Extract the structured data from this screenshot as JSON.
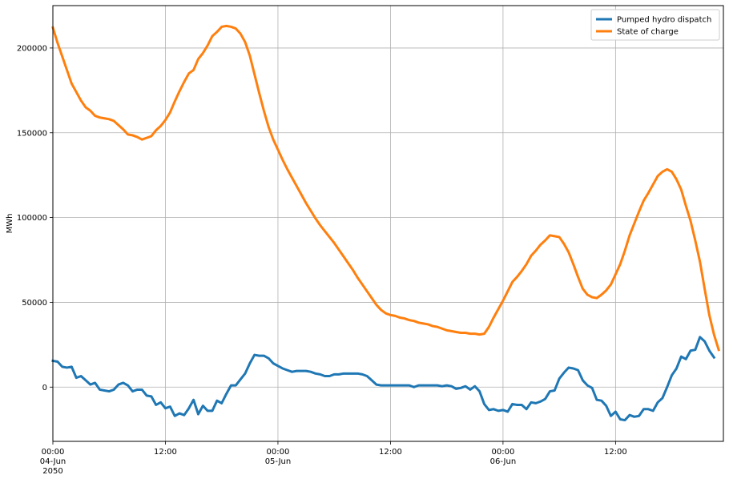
{
  "chart_data": {
    "type": "line",
    "title": "",
    "xlabel": "",
    "ylabel": "MWh",
    "ylim": [
      -32000,
      225000
    ],
    "xlim_hours": [
      0,
      71.5
    ],
    "x_ticks": [
      {
        "hour": 0,
        "lines": [
          "00:00",
          "04-Jun",
          "2050"
        ]
      },
      {
        "hour": 12,
        "lines": [
          "12:00"
        ]
      },
      {
        "hour": 24,
        "lines": [
          "00:00",
          "05-Jun"
        ]
      },
      {
        "hour": 36,
        "lines": [
          "12:00"
        ]
      },
      {
        "hour": 48,
        "lines": [
          "00:00",
          "06-Jun"
        ]
      },
      {
        "hour": 60,
        "lines": [
          "12:00"
        ]
      }
    ],
    "y_ticks": [
      0,
      50000,
      100000,
      150000,
      200000
    ],
    "y_tick_labels": [
      "0",
      "50000",
      "100000",
      "150000",
      "200000"
    ],
    "grid": true,
    "legend_position": "top-right",
    "series": [
      {
        "name": "Pumped hydro dispatch",
        "color": "#1f77b4",
        "points": [
          [
            0,
            15500
          ],
          [
            0.5,
            15000
          ],
          [
            1,
            12000
          ],
          [
            1.5,
            11500
          ],
          [
            2,
            12000
          ],
          [
            2.5,
            5500
          ],
          [
            3,
            6500
          ],
          [
            3.5,
            4000
          ],
          [
            4,
            1500
          ],
          [
            4.5,
            2500
          ],
          [
            5,
            -1500
          ],
          [
            5.5,
            -2000
          ],
          [
            6,
            -2500
          ],
          [
            6.5,
            -1500
          ],
          [
            7,
            1500
          ],
          [
            7.5,
            2500
          ],
          [
            8,
            1000
          ],
          [
            8.5,
            -2500
          ],
          [
            9,
            -1500
          ],
          [
            9.5,
            -1500
          ],
          [
            10,
            -5000
          ],
          [
            10.5,
            -5500
          ],
          [
            11,
            -10500
          ],
          [
            11.5,
            -9000
          ],
          [
            12,
            -12500
          ],
          [
            12.5,
            -11500
          ],
          [
            13,
            -17000
          ],
          [
            13.5,
            -15500
          ],
          [
            14,
            -16500
          ],
          [
            14.5,
            -12500
          ],
          [
            15,
            -7500
          ],
          [
            15.5,
            -16000
          ],
          [
            16,
            -11000
          ],
          [
            16.5,
            -14000
          ],
          [
            17,
            -14000
          ],
          [
            17.5,
            -8000
          ],
          [
            18,
            -9500
          ],
          [
            18.5,
            -4000
          ],
          [
            19,
            1000
          ],
          [
            19.5,
            1000
          ],
          [
            20,
            4500
          ],
          [
            20.5,
            8000
          ],
          [
            21,
            14000
          ],
          [
            21.5,
            19000
          ],
          [
            22,
            18500
          ],
          [
            22.5,
            18500
          ],
          [
            23,
            17000
          ],
          [
            23.5,
            14000
          ],
          [
            24,
            12500
          ],
          [
            24.5,
            11000
          ],
          [
            25,
            10000
          ],
          [
            25.5,
            9000
          ],
          [
            26,
            9500
          ],
          [
            26.5,
            9500
          ],
          [
            27,
            9500
          ],
          [
            27.5,
            9000
          ],
          [
            28,
            8000
          ],
          [
            28.5,
            7500
          ],
          [
            29,
            6500
          ],
          [
            29.5,
            6500
          ],
          [
            30,
            7500
          ],
          [
            30.5,
            7500
          ],
          [
            31,
            8000
          ],
          [
            31.5,
            8000
          ],
          [
            32,
            8000
          ],
          [
            32.5,
            8000
          ],
          [
            33,
            7500
          ],
          [
            33.5,
            6500
          ],
          [
            34,
            4000
          ],
          [
            34.5,
            1500
          ],
          [
            35,
            1000
          ],
          [
            35.5,
            1000
          ],
          [
            36,
            1000
          ],
          [
            36.5,
            1000
          ],
          [
            37,
            1000
          ],
          [
            37.5,
            1000
          ],
          [
            38,
            1000
          ],
          [
            38.5,
            0
          ],
          [
            39,
            1000
          ],
          [
            39.5,
            1000
          ],
          [
            40,
            1000
          ],
          [
            40.5,
            1000
          ],
          [
            41,
            1000
          ],
          [
            41.5,
            500
          ],
          [
            42,
            1000
          ],
          [
            42.5,
            500
          ],
          [
            43,
            -1000
          ],
          [
            43.5,
            -500
          ],
          [
            44,
            500
          ],
          [
            44.5,
            -1500
          ],
          [
            45,
            500
          ],
          [
            45.5,
            -2500
          ],
          [
            46,
            -10000
          ],
          [
            46.5,
            -13500
          ],
          [
            47,
            -13000
          ],
          [
            47.5,
            -14000
          ],
          [
            48,
            -13500
          ],
          [
            48.5,
            -14500
          ],
          [
            49,
            -10000
          ],
          [
            49.5,
            -10500
          ],
          [
            50,
            -10500
          ],
          [
            50.5,
            -13000
          ],
          [
            51,
            -9000
          ],
          [
            51.5,
            -9500
          ],
          [
            52,
            -8500
          ],
          [
            52.5,
            -7000
          ],
          [
            53,
            -2500
          ],
          [
            53.5,
            -2000
          ],
          [
            54,
            5000
          ],
          [
            54.5,
            8500
          ],
          [
            55,
            11500
          ],
          [
            55.5,
            11000
          ],
          [
            56,
            10000
          ],
          [
            56.5,
            4000
          ],
          [
            57,
            1000
          ],
          [
            57.5,
            -500
          ],
          [
            58,
            -7500
          ],
          [
            58.5,
            -8000
          ],
          [
            59,
            -11000
          ],
          [
            59.5,
            -17000
          ],
          [
            60,
            -14500
          ],
          [
            60.5,
            -19000
          ],
          [
            61,
            -19500
          ],
          [
            61.5,
            -16500
          ],
          [
            62,
            -17500
          ],
          [
            62.5,
            -17000
          ],
          [
            63,
            -13000
          ],
          [
            63.5,
            -13000
          ],
          [
            64,
            -14000
          ],
          [
            64.5,
            -9000
          ],
          [
            65,
            -6500
          ],
          [
            65.5,
            0
          ],
          [
            66,
            7000
          ],
          [
            66.5,
            11000
          ],
          [
            67,
            18000
          ],
          [
            67.5,
            16500
          ],
          [
            68,
            21500
          ],
          [
            68.5,
            22000
          ],
          [
            69,
            29500
          ],
          [
            69.5,
            27000
          ],
          [
            70,
            21500
          ],
          [
            70.5,
            17500
          ]
        ]
      },
      {
        "name": "State of charge",
        "color": "#ff7f0e",
        "points": [
          [
            0,
            212000
          ],
          [
            0.5,
            203000
          ],
          [
            1,
            195000
          ],
          [
            1.5,
            187000
          ],
          [
            2,
            179000
          ],
          [
            2.5,
            174000
          ],
          [
            3,
            169000
          ],
          [
            3.5,
            165000
          ],
          [
            4,
            163000
          ],
          [
            4.5,
            160000
          ],
          [
            5,
            159000
          ],
          [
            5.5,
            158500
          ],
          [
            6,
            158000
          ],
          [
            6.5,
            157000
          ],
          [
            7,
            154500
          ],
          [
            7.5,
            152000
          ],
          [
            8,
            149000
          ],
          [
            8.5,
            148500
          ],
          [
            9,
            147500
          ],
          [
            9.5,
            146000
          ],
          [
            10,
            147000
          ],
          [
            10.5,
            148000
          ],
          [
            11,
            151500
          ],
          [
            11.5,
            154000
          ],
          [
            12,
            157500
          ],
          [
            12.5,
            162000
          ],
          [
            13,
            168500
          ],
          [
            13.5,
            174500
          ],
          [
            14,
            180000
          ],
          [
            14.5,
            185000
          ],
          [
            15,
            187000
          ],
          [
            15.5,
            193500
          ],
          [
            16,
            197000
          ],
          [
            16.5,
            201500
          ],
          [
            17,
            207000
          ],
          [
            17.5,
            209500
          ],
          [
            18,
            212500
          ],
          [
            18.5,
            213000
          ],
          [
            19,
            212500
          ],
          [
            19.5,
            211500
          ],
          [
            20,
            208500
          ],
          [
            20.5,
            203500
          ],
          [
            21,
            195500
          ],
          [
            21.5,
            184500
          ],
          [
            22,
            173500
          ],
          [
            22.5,
            163000
          ],
          [
            23,
            153500
          ],
          [
            23.5,
            146000
          ],
          [
            24,
            140000
          ],
          [
            24.5,
            134000
          ],
          [
            25,
            128500
          ],
          [
            25.5,
            123500
          ],
          [
            26,
            118500
          ],
          [
            26.5,
            113500
          ],
          [
            27,
            108500
          ],
          [
            27.5,
            104000
          ],
          [
            28,
            99500
          ],
          [
            28.5,
            95500
          ],
          [
            29,
            92000
          ],
          [
            29.5,
            88500
          ],
          [
            30,
            85000
          ],
          [
            30.5,
            81000
          ],
          [
            31,
            77000
          ],
          [
            31.5,
            73000
          ],
          [
            32,
            69000
          ],
          [
            32.5,
            64500
          ],
          [
            33,
            60500
          ],
          [
            33.5,
            56500
          ],
          [
            34,
            52500
          ],
          [
            34.5,
            48500
          ],
          [
            35,
            45500
          ],
          [
            35.5,
            43500
          ],
          [
            36,
            42500
          ],
          [
            36.5,
            42000
          ],
          [
            37,
            41000
          ],
          [
            37.5,
            40500
          ],
          [
            38,
            39500
          ],
          [
            38.5,
            39000
          ],
          [
            39,
            38000
          ],
          [
            39.5,
            37500
          ],
          [
            40,
            37000
          ],
          [
            40.5,
            36000
          ],
          [
            41,
            35500
          ],
          [
            41.5,
            34500
          ],
          [
            42,
            33500
          ],
          [
            42.5,
            33000
          ],
          [
            43,
            32500
          ],
          [
            43.5,
            32000
          ],
          [
            44,
            32000
          ],
          [
            44.5,
            31500
          ],
          [
            45,
            31500
          ],
          [
            45.5,
            31000
          ],
          [
            46,
            31500
          ],
          [
            46.5,
            35500
          ],
          [
            47,
            41000
          ],
          [
            47.5,
            46000
          ],
          [
            48,
            51000
          ],
          [
            48.5,
            56500
          ],
          [
            49,
            62000
          ],
          [
            49.5,
            65000
          ],
          [
            50,
            68500
          ],
          [
            50.5,
            72500
          ],
          [
            51,
            77500
          ],
          [
            51.5,
            80500
          ],
          [
            52,
            84000
          ],
          [
            52.5,
            86500
          ],
          [
            53,
            89500
          ],
          [
            53.5,
            89000
          ],
          [
            54,
            88500
          ],
          [
            54.5,
            84500
          ],
          [
            55,
            79500
          ],
          [
            55.5,
            72500
          ],
          [
            56,
            65000
          ],
          [
            56.5,
            58000
          ],
          [
            57,
            54500
          ],
          [
            57.5,
            53000
          ],
          [
            58,
            52500
          ],
          [
            58.5,
            54500
          ],
          [
            59,
            57000
          ],
          [
            59.5,
            60500
          ],
          [
            60,
            66500
          ],
          [
            60.5,
            72500
          ],
          [
            61,
            80500
          ],
          [
            61.5,
            89500
          ],
          [
            62,
            96500
          ],
          [
            62.5,
            103500
          ],
          [
            63,
            110000
          ],
          [
            63.5,
            114500
          ],
          [
            64,
            119500
          ],
          [
            64.5,
            124500
          ],
          [
            65,
            127000
          ],
          [
            65.5,
            128500
          ],
          [
            66,
            127000
          ],
          [
            66.5,
            122500
          ],
          [
            67,
            116500
          ],
          [
            67.5,
            107000
          ],
          [
            68,
            98000
          ],
          [
            68.5,
            86500
          ],
          [
            69,
            74000
          ],
          [
            69.5,
            58000
          ],
          [
            70,
            42500
          ],
          [
            70.5,
            31000
          ],
          [
            71,
            22000
          ]
        ]
      }
    ]
  }
}
